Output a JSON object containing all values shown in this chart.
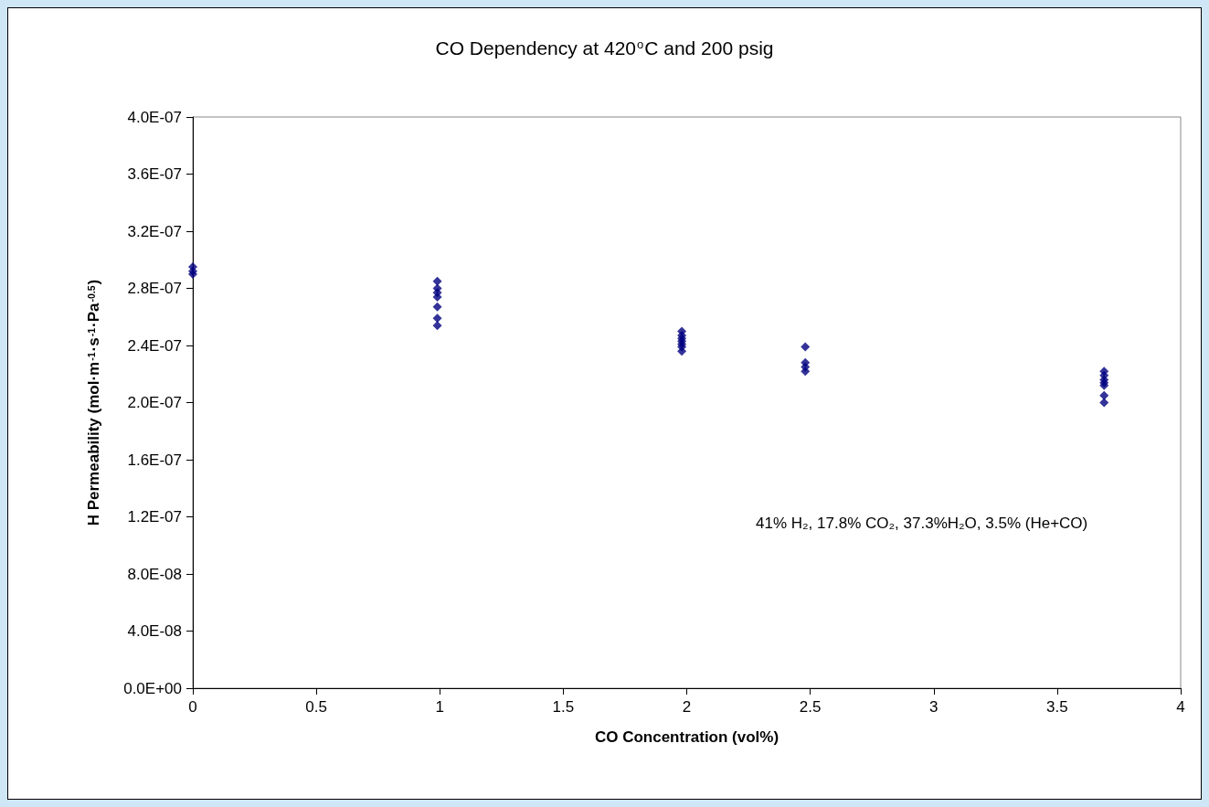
{
  "chart_data": {
    "type": "scatter",
    "title": "CO Dependency at 420$^{o}$C and 200 psig",
    "xlabel": "CO Concentration (vol%)",
    "ylabel": "H Permeability (mol·m$^{-1}$·s$^{-1}$·Pa$^{-0.5}$)",
    "annotations": [
      "41% H₂, 17.8% CO₂, 37.3%H₂O, 3.5% (He+CO)"
    ],
    "series": [
      {
        "color": "#000080",
        "x": [
          0,
          0,
          0,
          0.99,
          0.99,
          0.99,
          0.99,
          0.99,
          0.99,
          0.99,
          1.98,
          1.98,
          1.98,
          1.98,
          1.98,
          1.98,
          1.98,
          2.48,
          2.48,
          2.48,
          2.48,
          3.69,
          3.69,
          3.69,
          3.69,
          3.69,
          3.69,
          3.69
        ],
        "values": [
          2.95e-07,
          2.92e-07,
          2.9e-07,
          2.85e-07,
          2.8e-07,
          2.77e-07,
          2.74e-07,
          2.67e-07,
          2.59e-07,
          2.54e-07,
          2.5e-07,
          2.47e-07,
          2.45e-07,
          2.43e-07,
          2.41e-07,
          2.39e-07,
          2.36e-07,
          2.39e-07,
          2.28e-07,
          2.25e-07,
          2.22e-07,
          2.22e-07,
          2.19e-07,
          2.16e-07,
          2.14e-07,
          2.12e-07,
          2.05e-07,
          2e-07
        ]
      }
    ],
    "marker": "diamond",
    "xlim": [
      0,
      4
    ],
    "xticks": [
      0,
      0.5,
      1,
      1.5,
      2,
      2.5,
      3,
      3.5,
      4
    ],
    "ylim": [
      0,
      4e-07
    ],
    "yticks": [
      {
        "value": 0,
        "label": "0.0E+00"
      },
      {
        "value": 4e-08,
        "label": "4.0E-08"
      },
      {
        "value": 8e-08,
        "label": "8.0E-08"
      },
      {
        "value": 1.2e-07,
        "label": "1.2E-07"
      },
      {
        "value": 1.6e-07,
        "label": "1.6E-07"
      },
      {
        "value": 2e-07,
        "label": "2.0E-07"
      },
      {
        "value": 2.4e-07,
        "label": "2.4E-07"
      },
      {
        "value": 2.8e-07,
        "label": "2.8E-07"
      },
      {
        "value": 3.2e-07,
        "label": "3.2E-07"
      },
      {
        "value": 3.6e-07,
        "label": "3.6E-07"
      },
      {
        "value": 4e-07,
        "label": "4.0E-07"
      }
    ],
    "grid": false
  }
}
